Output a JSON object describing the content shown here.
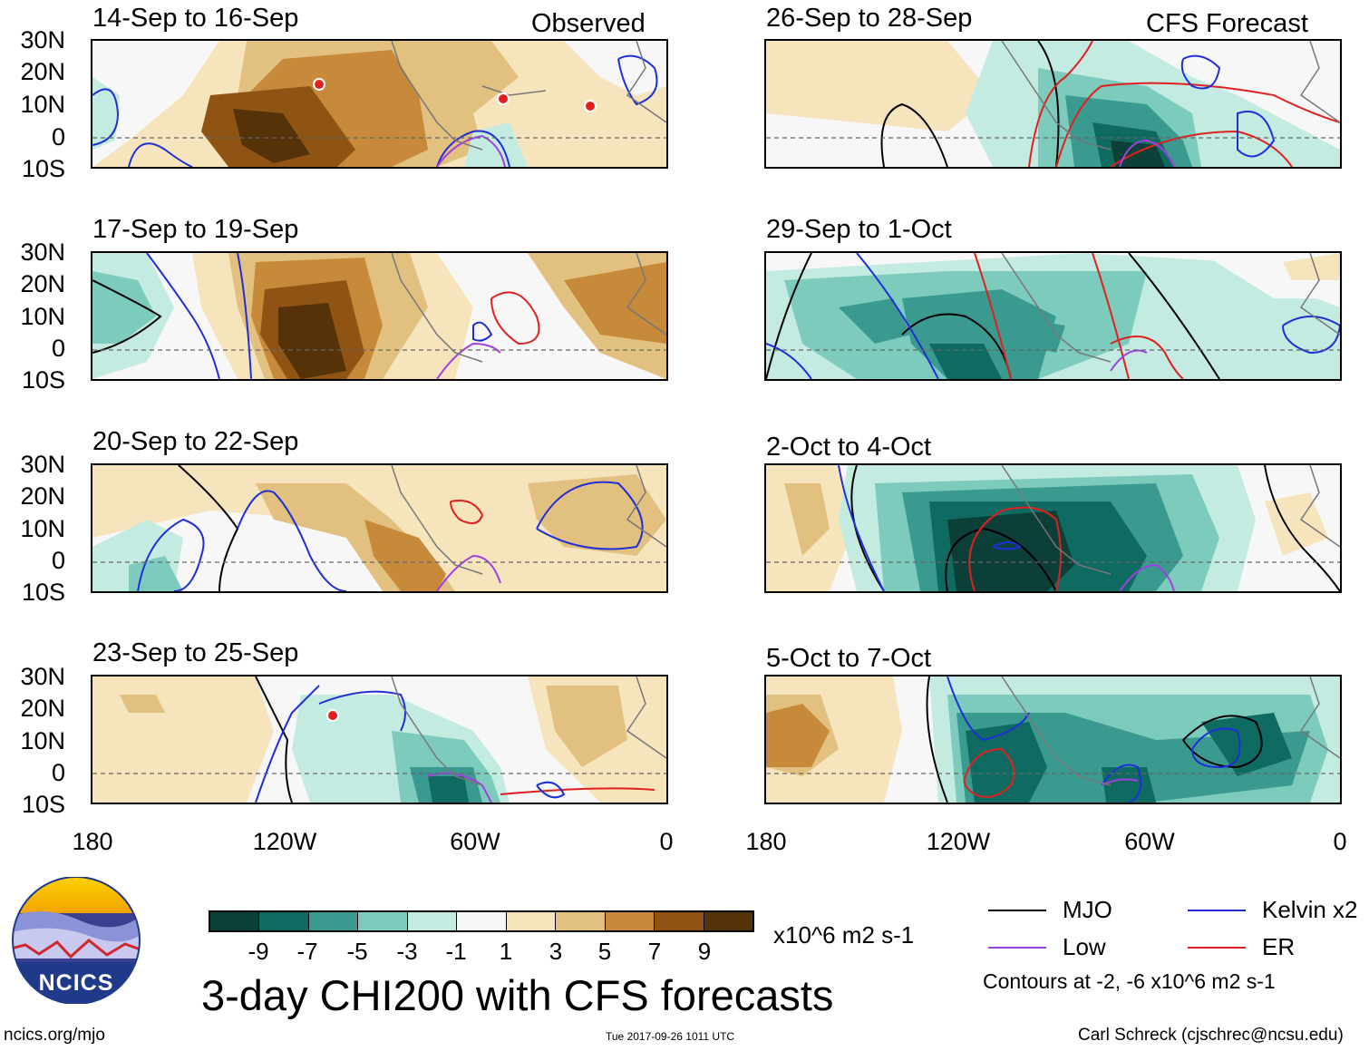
{
  "header": {
    "observed_label": "Observed",
    "forecast_label": "CFS Forecast"
  },
  "panels": {
    "left": [
      "14-Sep to 16-Sep",
      "17-Sep to 19-Sep",
      "20-Sep to 22-Sep",
      "23-Sep to 25-Sep"
    ],
    "right": [
      "26-Sep to 28-Sep",
      "29-Sep to 1-Oct",
      "2-Oct to 4-Oct",
      "5-Oct to 7-Oct"
    ]
  },
  "axes": {
    "lat_labels": [
      "30N",
      "20N",
      "10N",
      "0",
      "10S"
    ],
    "lon_labels": [
      "180",
      "120W",
      "60W",
      "0"
    ]
  },
  "colorbar": {
    "colors": [
      "#0b3f38",
      "#0f6a62",
      "#3a9a90",
      "#7dcbbd",
      "#c4ebe1",
      "#f7f7f7",
      "#f6e4bd",
      "#e2c07f",
      "#c68a3a",
      "#8f5414",
      "#553207"
    ],
    "tick_labels": [
      "-9",
      "-7",
      "-5",
      "-3",
      "-1",
      "1",
      "3",
      "5",
      "7",
      "9"
    ],
    "units": "x10^6 m2 s-1"
  },
  "title": "3-day CHI200 with CFS forecasts",
  "legend": {
    "items": [
      {
        "label": "MJO",
        "color": "#000000"
      },
      {
        "label": "Kelvin x2",
        "color": "#1f2fd6"
      },
      {
        "label": "Low",
        "color": "#a040e0"
      },
      {
        "label": "ER",
        "color": "#e02020"
      }
    ],
    "note": "Contours at -2, -6 x10^6 m2 s-1"
  },
  "logo": {
    "text": "NCICS"
  },
  "footer": {
    "url": "ncics.org/mjo",
    "timestamp": "Tue 2017-09-26 1011 UTC",
    "author": "Carl Schreck (cjschrec@ncsu.edu)"
  }
}
